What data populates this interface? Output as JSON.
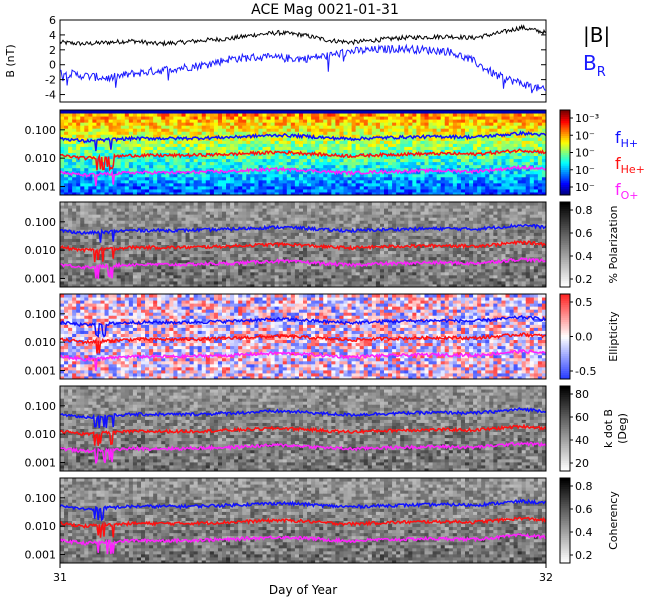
{
  "title": "ACE Mag 0021-01-31",
  "xlabel": "Day of Year",
  "x_ticks": [
    "31",
    "32"
  ],
  "colors": {
    "total_field": "#000000",
    "radial_field": "#1a1aff",
    "f_hplus": "#1010ff",
    "f_heplus": "#ff1010",
    "f_oplus": "#ff20ff"
  },
  "chart_data": [
    {
      "type": "line",
      "panel": "magnetic-field",
      "ylabel": "B (nT)",
      "xlim": [
        31,
        32
      ],
      "ylim": [
        -5,
        6
      ],
      "y_ticks": [
        "6",
        "4",
        "2",
        "0",
        "-2",
        "-4"
      ],
      "series": [
        {
          "name": "|B|",
          "label_main": "|B|",
          "x": [
            31.0,
            31.05,
            31.1,
            31.15,
            31.2,
            31.25,
            31.3,
            31.35,
            31.4,
            31.45,
            31.5,
            31.55,
            31.6,
            31.65,
            31.7,
            31.75,
            31.8,
            31.85,
            31.9,
            31.95,
            32.0
          ],
          "y": [
            3.0,
            2.8,
            3.0,
            3.2,
            2.8,
            3.0,
            3.3,
            3.5,
            4.0,
            4.3,
            4.0,
            3.3,
            3.0,
            3.3,
            3.6,
            3.7,
            3.8,
            3.6,
            4.2,
            5.0,
            4.3
          ]
        },
        {
          "name": "B_R",
          "label_main": "B",
          "label_sub": "R",
          "x": [
            31.0,
            31.05,
            31.1,
            31.15,
            31.2,
            31.25,
            31.3,
            31.35,
            31.4,
            31.45,
            31.5,
            31.55,
            31.6,
            31.65,
            31.7,
            31.75,
            31.8,
            31.85,
            31.9,
            31.95,
            32.0
          ],
          "y": [
            -1.0,
            -1.5,
            -1.8,
            -1.2,
            -0.8,
            -0.4,
            0.0,
            0.8,
            1.0,
            0.9,
            0.8,
            1.2,
            1.8,
            2.0,
            2.2,
            2.0,
            1.8,
            0.5,
            -1.5,
            -2.5,
            -3.5
          ]
        }
      ]
    },
    {
      "type": "heatmap",
      "panel": "power-spectrum",
      "colorbar_ticks": [
        "10⁻³",
        "10⁻",
        "10⁻",
        "10⁻",
        "10⁻"
      ],
      "ylim": [
        0.0005,
        0.5
      ],
      "y_ticks": [
        "0.100",
        "0.010",
        "0.001"
      ]
    },
    {
      "type": "heatmap",
      "panel": "polarization",
      "colorbar_label": "% Polarization",
      "colorbar_ticks": [
        "0.8",
        "0.6",
        "0.4",
        "0.2"
      ],
      "y_ticks": [
        "0.100",
        "0.010",
        "0.001"
      ]
    },
    {
      "type": "heatmap",
      "panel": "ellipticity",
      "colorbar_label": "Ellipticity",
      "colorbar_ticks": [
        "0.5",
        "0.0",
        "-0.5"
      ],
      "y_ticks": [
        "0.100",
        "0.010",
        "0.001"
      ]
    },
    {
      "type": "heatmap",
      "panel": "k-dot-b",
      "colorbar_label": "k dot B",
      "colorbar_label2": "(Deg)",
      "colorbar_ticks": [
        "80",
        "60",
        "40",
        "20"
      ],
      "y_ticks": [
        "0.100",
        "0.010",
        "0.001"
      ]
    },
    {
      "type": "heatmap",
      "panel": "coherency",
      "colorbar_label": "Coherency",
      "colorbar_ticks": [
        "0.8",
        "0.6",
        "0.4",
        "0.2"
      ],
      "y_ticks": [
        "0.100",
        "0.010",
        "0.001"
      ]
    }
  ],
  "gyrofrequency_lines": [
    {
      "name": "f_H+",
      "label_main": "f",
      "label_sub": "H+",
      "x": [
        31.0,
        31.05,
        31.1,
        31.15,
        31.2,
        31.25,
        31.3,
        31.35,
        31.4,
        31.45,
        31.5,
        31.55,
        31.6,
        31.65,
        31.7,
        31.75,
        31.8,
        31.85,
        31.9,
        31.95,
        32.0
      ],
      "y": [
        0.05,
        0.04,
        0.045,
        0.05,
        0.05,
        0.05,
        0.052,
        0.055,
        0.06,
        0.065,
        0.06,
        0.052,
        0.048,
        0.052,
        0.055,
        0.057,
        0.058,
        0.055,
        0.064,
        0.076,
        0.065
      ]
    },
    {
      "name": "f_He+",
      "label_main": "f",
      "label_sub": "He+",
      "x": [
        31.0,
        31.05,
        31.1,
        31.15,
        31.2,
        31.25,
        31.3,
        31.35,
        31.4,
        31.45,
        31.5,
        31.55,
        31.6,
        31.65,
        31.7,
        31.75,
        31.8,
        31.85,
        31.9,
        31.95,
        32.0
      ],
      "y": [
        0.0125,
        0.01,
        0.0112,
        0.0125,
        0.0125,
        0.0125,
        0.013,
        0.0138,
        0.015,
        0.0162,
        0.015,
        0.013,
        0.012,
        0.013,
        0.0138,
        0.0142,
        0.0145,
        0.0138,
        0.016,
        0.019,
        0.0162
      ]
    },
    {
      "name": "f_O+",
      "label_main": "f",
      "label_sub": "O+",
      "x": [
        31.0,
        31.05,
        31.1,
        31.15,
        31.2,
        31.25,
        31.3,
        31.35,
        31.4,
        31.45,
        31.5,
        31.55,
        31.6,
        31.65,
        31.7,
        31.75,
        31.8,
        31.85,
        31.9,
        31.95,
        32.0
      ],
      "y": [
        0.0031,
        0.0025,
        0.0028,
        0.0031,
        0.0031,
        0.0031,
        0.0033,
        0.0034,
        0.0038,
        0.0041,
        0.0038,
        0.0033,
        0.003,
        0.0033,
        0.0034,
        0.0036,
        0.0036,
        0.0034,
        0.004,
        0.0048,
        0.0041
      ]
    }
  ]
}
